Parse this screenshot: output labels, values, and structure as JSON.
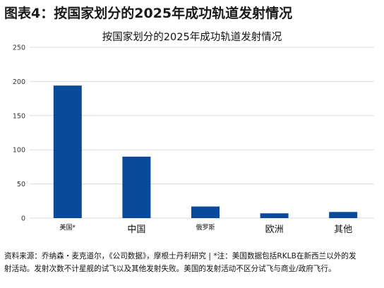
{
  "figure": {
    "title": "图表4：按国家划分的2025年成功轨道发射情况",
    "source_line1": "资料来源：乔纳森・麦克道尔，《公司数据》，摩根士丹利研究 | *注：美国数据包括RKLB在新西兰以外的发",
    "source_line2": "射活动。发射次数不计星舰的试飞以及其他发射失败。美国的发射活动不区分试飞与商业/政府飞行。"
  },
  "chart_data": {
    "type": "bar",
    "title": "按国家划分的2025年成功轨道发射情况",
    "xlabel": "",
    "ylabel": "",
    "categories": [
      "美国*",
      "中国",
      "俄罗斯",
      "欧洲",
      "其他"
    ],
    "values": [
      194,
      90,
      17,
      7,
      9
    ],
    "ylim": [
      0,
      250
    ],
    "yticks": [
      0,
      50,
      100,
      150,
      200,
      250
    ],
    "grid": true,
    "legend": "none",
    "bar_color": "#0a4a9a",
    "grid_color": "#d9d9d9"
  }
}
